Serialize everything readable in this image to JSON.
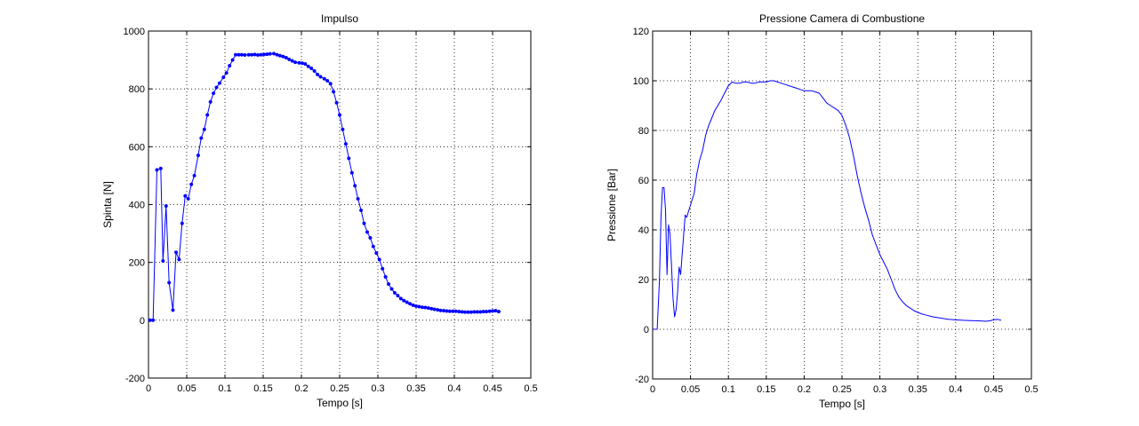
{
  "chart_data": [
    {
      "type": "line",
      "title": "Impulso",
      "xlabel": "Tempo [s]",
      "ylabel": "Spinta [N]",
      "xlim": [
        0,
        0.5
      ],
      "ylim": [
        -200,
        1000
      ],
      "xticks": [
        "0",
        "0.05",
        "0.1",
        "0.15",
        "0.2",
        "0.25",
        "0.3",
        "0.35",
        "0.4",
        "0.45",
        "0.5"
      ],
      "yticks": [
        "-200",
        "0",
        "200",
        "400",
        "600",
        "800",
        "1000"
      ],
      "grid": true,
      "marker": "dot",
      "color": "#0000ff",
      "series": [
        {
          "x": [
            0.002,
            0.006,
            0.011,
            0.016,
            0.019,
            0.023,
            0.027,
            0.032,
            0.036,
            0.04,
            0.044,
            0.048,
            0.052,
            0.056,
            0.06,
            0.065,
            0.069,
            0.073,
            0.077,
            0.081,
            0.085,
            0.089,
            0.093,
            0.098,
            0.102,
            0.106,
            0.11,
            0.114,
            0.118,
            0.122,
            0.126,
            0.131,
            0.135,
            0.139,
            0.143,
            0.147,
            0.151,
            0.155,
            0.159,
            0.164,
            0.168,
            0.172,
            0.176,
            0.18,
            0.184,
            0.188,
            0.192,
            0.197,
            0.201,
            0.205,
            0.209,
            0.213,
            0.217,
            0.221,
            0.225,
            0.23,
            0.234,
            0.238,
            0.242,
            0.246,
            0.25,
            0.254,
            0.258,
            0.262,
            0.266,
            0.27,
            0.274,
            0.278,
            0.282,
            0.286,
            0.29,
            0.294,
            0.298,
            0.302,
            0.306,
            0.31,
            0.314,
            0.318,
            0.322,
            0.326,
            0.33,
            0.334,
            0.338,
            0.342,
            0.346,
            0.35,
            0.354,
            0.358,
            0.362,
            0.366,
            0.37,
            0.374,
            0.378,
            0.382,
            0.386,
            0.39,
            0.394,
            0.398,
            0.402,
            0.406,
            0.41,
            0.414,
            0.418,
            0.422,
            0.426,
            0.43,
            0.434,
            0.438,
            0.442,
            0.446,
            0.45,
            0.454,
            0.458
          ],
          "y": [
            0,
            0,
            520,
            525,
            205,
            395,
            130,
            35,
            235,
            210,
            335,
            430,
            420,
            470,
            500,
            570,
            630,
            660,
            710,
            755,
            785,
            805,
            820,
            840,
            855,
            880,
            900,
            918,
            918,
            918,
            917,
            918,
            918,
            919,
            917,
            918,
            919,
            920,
            921,
            922,
            918,
            915,
            912,
            908,
            902,
            897,
            892,
            890,
            889,
            886,
            878,
            871,
            862,
            850,
            842,
            835,
            828,
            818,
            790,
            752,
            710,
            660,
            610,
            560,
            510,
            465,
            420,
            380,
            335,
            305,
            285,
            255,
            232,
            210,
            178,
            150,
            125,
            108,
            95,
            85,
            75,
            68,
            62,
            57,
            52,
            49,
            47,
            45,
            44,
            42,
            40,
            38,
            36,
            34,
            33,
            32,
            31,
            31,
            31,
            30,
            29,
            28,
            28,
            28,
            29,
            29,
            29,
            30,
            30,
            31,
            32,
            33,
            30
          ]
        }
      ]
    },
    {
      "type": "line",
      "title": "Pressione Camera di Combustione",
      "xlabel": "Tempo [s]",
      "ylabel": "Pressione [Bar]",
      "xlim": [
        0,
        0.5
      ],
      "ylim": [
        -20,
        120
      ],
      "xticks": [
        "0",
        "0.05",
        "0.1",
        "0.15",
        "0.2",
        "0.25",
        "0.3",
        "0.35",
        "0.4",
        "0.45",
        "0.5"
      ],
      "yticks": [
        "-20",
        "0",
        "20",
        "40",
        "60",
        "80",
        "100",
        "120"
      ],
      "grid": true,
      "marker": "none",
      "color": "#0000ff",
      "series": [
        {
          "x": [
            0,
            0.006,
            0.009,
            0.011,
            0.013,
            0.015,
            0.017,
            0.019,
            0.021,
            0.023,
            0.025,
            0.027,
            0.029,
            0.031,
            0.033,
            0.035,
            0.037,
            0.039,
            0.041,
            0.043,
            0.045,
            0.047,
            0.05,
            0.052,
            0.055,
            0.058,
            0.062,
            0.066,
            0.07,
            0.074,
            0.078,
            0.082,
            0.086,
            0.09,
            0.095,
            0.1,
            0.105,
            0.11,
            0.115,
            0.12,
            0.125,
            0.13,
            0.135,
            0.14,
            0.145,
            0.15,
            0.155,
            0.16,
            0.165,
            0.17,
            0.175,
            0.18,
            0.185,
            0.19,
            0.195,
            0.2,
            0.205,
            0.21,
            0.215,
            0.22,
            0.225,
            0.23,
            0.235,
            0.24,
            0.245,
            0.25,
            0.255,
            0.26,
            0.265,
            0.27,
            0.275,
            0.28,
            0.285,
            0.29,
            0.295,
            0.3,
            0.305,
            0.31,
            0.315,
            0.32,
            0.325,
            0.33,
            0.335,
            0.34,
            0.345,
            0.35,
            0.355,
            0.36,
            0.37,
            0.38,
            0.39,
            0.4,
            0.41,
            0.42,
            0.43,
            0.44,
            0.445,
            0.45,
            0.455,
            0.46
          ],
          "y": [
            0,
            0,
            20,
            45,
            57,
            57,
            48,
            22,
            42,
            38,
            25,
            12,
            5,
            8,
            15,
            25,
            22,
            30,
            38,
            46,
            45,
            47,
            50,
            52,
            55,
            62,
            68,
            72,
            78,
            82,
            85,
            88,
            90,
            92,
            95,
            98,
            99.5,
            99,
            99,
            99.5,
            99.5,
            99,
            99,
            99.5,
            99.5,
            99.5,
            100,
            100,
            99.5,
            99,
            98.5,
            98,
            97.5,
            97,
            96.5,
            96,
            96,
            96,
            95.5,
            95,
            93,
            91,
            90,
            89,
            88,
            86,
            82,
            77,
            70,
            62,
            55,
            49,
            44,
            38,
            34,
            30,
            27,
            24,
            20,
            16,
            13,
            11,
            9.5,
            8.5,
            7.5,
            6.8,
            6.2,
            5.8,
            5,
            4.5,
            4,
            3.8,
            3.6,
            3.5,
            3.4,
            3.2,
            3.4,
            3.8,
            4,
            3.6
          ]
        }
      ]
    }
  ]
}
